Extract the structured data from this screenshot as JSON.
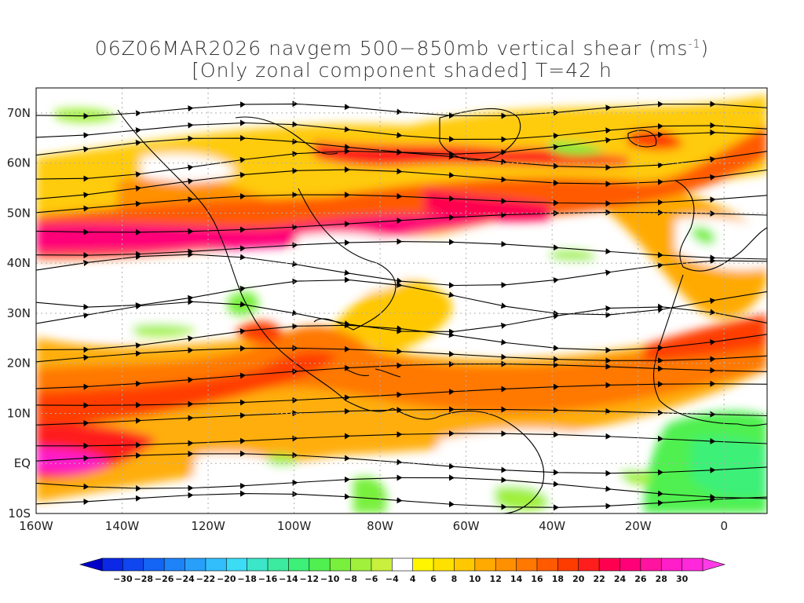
{
  "title": {
    "line1_prefix": "06Z06MAR2026 navgem 500−850mb vertical shear (ms",
    "line1_sup": "-1",
    "line1_suffix": ")",
    "line2": "[Only zonal component shaded] T=42 h"
  },
  "map": {
    "lon_range": [
      -160,
      10
    ],
    "lat_range": [
      -10,
      75
    ],
    "x_tick_labels": [
      "160W",
      "140W",
      "120W",
      "100W",
      "80W",
      "60W",
      "40W",
      "20W",
      "0"
    ],
    "y_tick_labels": [
      "10S",
      "EQ",
      "10N",
      "20N",
      "30N",
      "40N",
      "50N",
      "60N",
      "70N"
    ],
    "grid": "dotted"
  },
  "colorbar": {
    "labels": [
      "−30",
      "−28",
      "−26",
      "−24",
      "−22",
      "−20",
      "−18",
      "−16",
      "−14",
      "−12",
      "−10",
      "−8",
      "−6",
      "−4",
      "4",
      "6",
      "8",
      "10",
      "12",
      "14",
      "16",
      "18",
      "20",
      "22",
      "24",
      "26",
      "28",
      "30"
    ],
    "colors": [
      "#0a28e6",
      "#0f46f0",
      "#1464f5",
      "#1e82f8",
      "#28a0fa",
      "#32befc",
      "#3cdcf5",
      "#3ce6c8",
      "#3ceba0",
      "#3cf078",
      "#50f050",
      "#78f03c",
      "#a0f03c",
      "#c8f03c",
      "#ffffff",
      "#fff500",
      "#ffe100",
      "#ffc800",
      "#ffaa00",
      "#ff9100",
      "#ff7800",
      "#ff5a00",
      "#ff3c00",
      "#ff1e1e",
      "#ff0050",
      "#ff0078",
      "#ff14a0",
      "#ff1ec8",
      "#ff28dc"
    ]
  }
}
